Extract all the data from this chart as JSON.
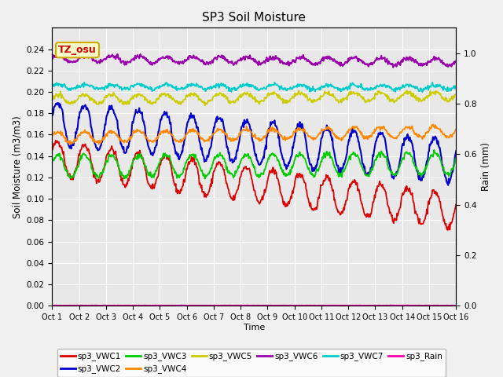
{
  "title": "SP3 Soil Moisture",
  "xlabel": "Time",
  "ylabel_left": "Soil Moisture (m3/m3)",
  "ylabel_right": "Rain (mm)",
  "xlim": [
    0,
    15
  ],
  "ylim_left": [
    0.0,
    0.26
  ],
  "ylim_right": [
    0.0,
    1.1
  ],
  "xtick_labels": [
    "Oct 1",
    "Oct 2",
    "Oct 3",
    "Oct 4",
    "Oct 5",
    "Oct 6",
    "Oct 7",
    "Oct 8",
    "Oct 9",
    "Oct 10",
    "Oct 11",
    "Oct 12",
    "Oct 13",
    "Oct 14",
    "Oct 15",
    "Oct 16"
  ],
  "xtick_positions": [
    0,
    1,
    2,
    3,
    4,
    5,
    6,
    7,
    8,
    9,
    10,
    11,
    12,
    13,
    14,
    15
  ],
  "ytick_left": [
    0.0,
    0.02,
    0.04,
    0.06,
    0.08,
    0.1,
    0.12,
    0.14,
    0.16,
    0.18,
    0.2,
    0.22,
    0.24
  ],
  "ytick_right": [
    0.0,
    0.2,
    0.4,
    0.6,
    0.8,
    1.0
  ],
  "bg_color": "#e8e8e8",
  "fig_color": "#f0f0f0",
  "grid_color": "#ffffff",
  "annotation_text": "TZ_osu",
  "annotation_color": "#cc0000",
  "annotation_bg": "#ffffcc",
  "annotation_border": "#ccaa00",
  "legend_entries": [
    "sp3_VWC1",
    "sp3_VWC2",
    "sp3_VWC3",
    "sp3_VWC4",
    "sp3_VWC5",
    "sp3_VWC6",
    "sp3_VWC7",
    "sp3_Rain"
  ],
  "line_colors": [
    "#dd0000",
    "#0000cc",
    "#00cc00",
    "#ff8800",
    "#cccc00",
    "#9900aa",
    "#00cccc",
    "#ff00aa"
  ],
  "line_widths": [
    1.3,
    1.5,
    1.3,
    1.3,
    1.3,
    1.5,
    1.3,
    1.3
  ]
}
